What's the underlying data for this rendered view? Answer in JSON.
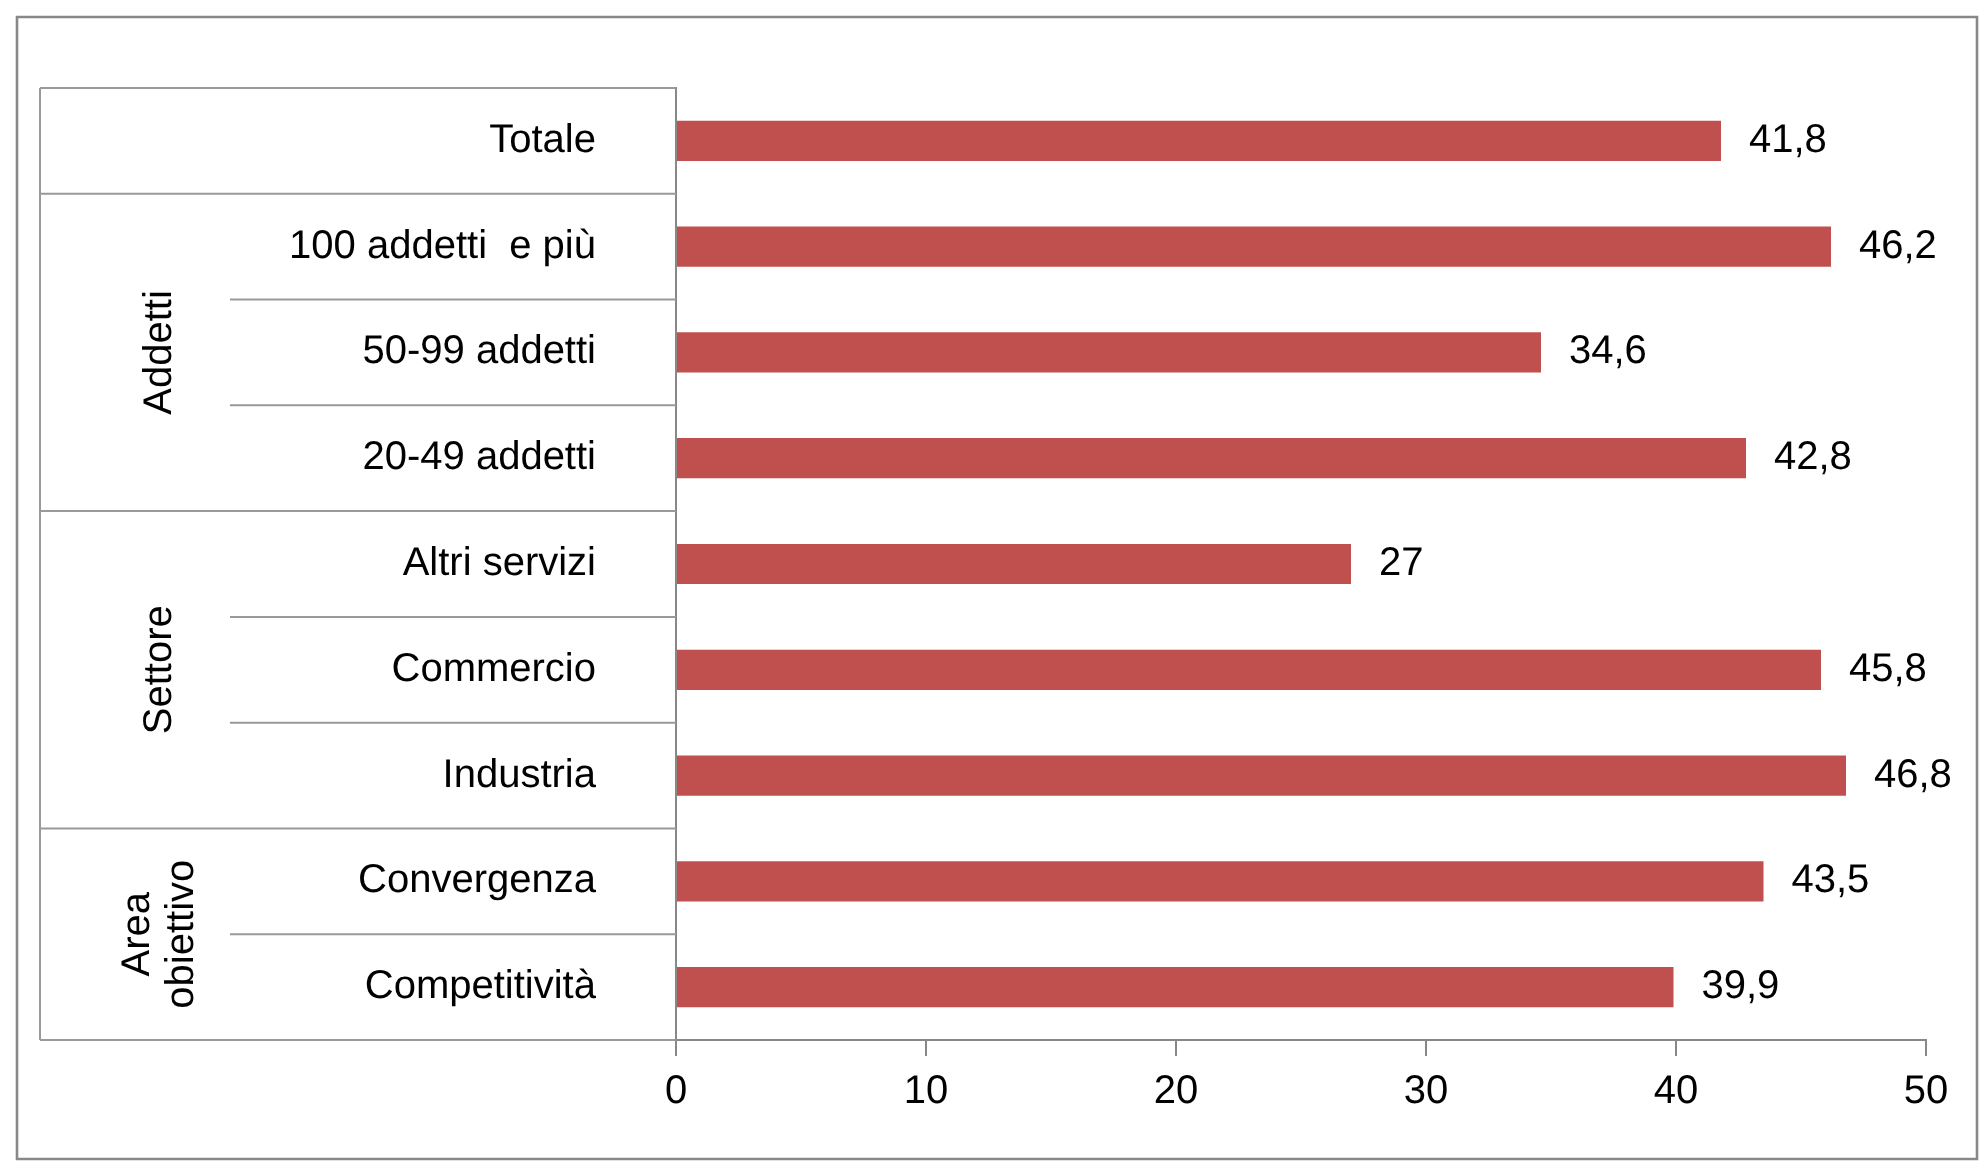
{
  "chart_data": {
    "type": "bar",
    "orientation": "horizontal",
    "categories": [
      "Totale",
      "100 addetti  e più",
      "50-99 addetti",
      "20-49 addetti",
      "Altri servizi",
      "Commercio",
      "Industria",
      "Convergenza",
      "Competitività"
    ],
    "values": [
      41.8,
      46.2,
      34.6,
      42.8,
      27,
      45.8,
      46.8,
      43.5,
      39.9
    ],
    "value_labels": [
      "41,8",
      "46,2",
      "34,6",
      "42,8",
      "27",
      "45,8",
      "46,8",
      "43,5",
      "39,9"
    ],
    "color": "#c0504d",
    "xlim": [
      0,
      50
    ],
    "xticks": [
      0,
      10,
      20,
      30,
      40,
      50
    ],
    "grid": false,
    "legend": false,
    "annotations": [
      "Addetti",
      "Settore",
      "Area obiettivo"
    ]
  }
}
